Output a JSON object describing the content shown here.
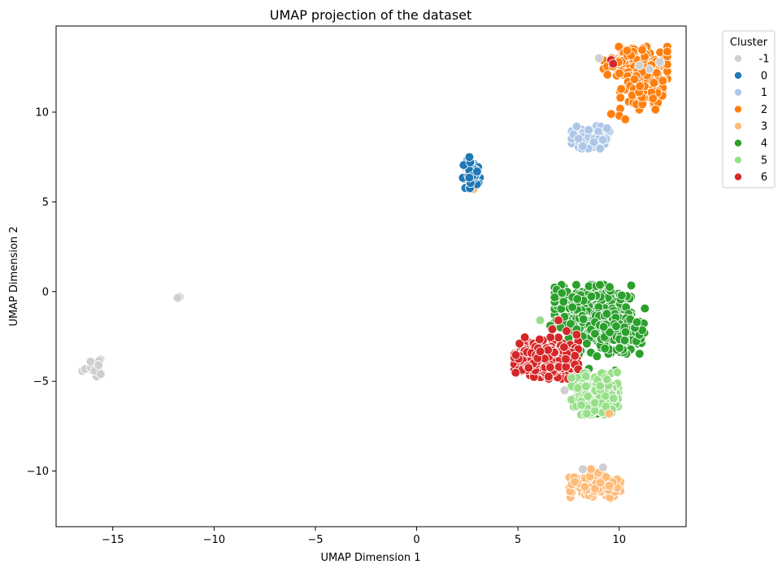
{
  "chart_data": {
    "type": "scatter",
    "title": "UMAP projection of the dataset",
    "xlabel": "UMAP Dimension 1",
    "ylabel": "UMAP Dimension 2",
    "xlim": [
      -17.8,
      13.3
    ],
    "ylim": [
      -13.1,
      14.8
    ],
    "xticks": [
      -15,
      -10,
      -5,
      0,
      5,
      10
    ],
    "xtick_labels": [
      "−15",
      "−10",
      "−5",
      "0",
      "5",
      "10"
    ],
    "yticks": [
      -10,
      -5,
      0,
      5,
      10
    ],
    "ytick_labels": [
      "−10",
      "−5",
      "0",
      "5",
      "10"
    ],
    "grid": false,
    "legend": {
      "title": "Cluster",
      "placement": "outside-top-right",
      "entries": [
        "-1",
        "0",
        "1",
        "2",
        "3",
        "4",
        "5",
        "6"
      ]
    },
    "cluster_colors": {
      "-1": "#cfcfcf",
      "0": "#1f77b4",
      "1": "#aec7e8",
      "2": "#ff7f0e",
      "3": "#ffbb78",
      "4": "#2ca02c",
      "5": "#98df8a",
      "6": "#d62728"
    },
    "series": [
      {
        "cluster": "4",
        "blobs": [
          {
            "center": [
              8.7,
              -1.2
            ],
            "spread": [
              0.9,
              0.75
            ],
            "count": 320
          },
          {
            "center": [
              9.9,
              -2.2
            ],
            "spread": [
              0.65,
              0.6
            ],
            "count": 180
          }
        ],
        "points": [
          [
            7.3,
            -1.4
          ],
          [
            7.6,
            -1.8
          ],
          [
            7.9,
            -2.1
          ],
          [
            8.2,
            -2.5
          ],
          [
            8.4,
            -2.9
          ],
          [
            8.1,
            -3.3
          ],
          [
            7.8,
            -3.0
          ],
          [
            7.1,
            -2.0
          ],
          [
            6.9,
            -1.6
          ],
          [
            8.6,
            -3.4
          ],
          [
            8.9,
            -3.6
          ],
          [
            7.5,
            -2.6
          ],
          [
            8.0,
            -3.5
          ],
          [
            6.6,
            -1.9
          ],
          [
            7.2,
            -2.9
          ],
          [
            8.9,
            -6.8
          ],
          [
            9.8,
            -4.4
          ],
          [
            8.5,
            -4.3
          ],
          [
            5.3,
            -3.6
          ]
        ]
      },
      {
        "cluster": "2",
        "blobs": [
          {
            "center": [
              10.8,
              12.7
            ],
            "spread": [
              0.75,
              0.45
            ],
            "count": 170
          },
          {
            "center": [
              11.1,
              11.2
            ],
            "spread": [
              0.5,
              0.5
            ],
            "count": 110
          }
        ],
        "points": [
          [
            10.0,
            9.8
          ],
          [
            10.3,
            9.6
          ],
          [
            9.6,
            9.9
          ]
        ]
      },
      {
        "cluster": "6",
        "blobs": [
          {
            "center": [
              6.4,
              -3.7
            ],
            "spread": [
              0.75,
              0.55
            ],
            "count": 300
          }
        ],
        "points": [
          [
            9.6,
            12.9
          ],
          [
            9.7,
            12.7
          ],
          [
            7.0,
            -1.6
          ],
          [
            7.4,
            -2.2
          ],
          [
            6.7,
            -2.1
          ],
          [
            7.9,
            -2.4
          ],
          [
            7.7,
            -6.0
          ]
        ]
      },
      {
        "cluster": "5",
        "blobs": [
          {
            "center": [
              8.8,
              -5.7
            ],
            "spread": [
              0.55,
              0.55
            ],
            "count": 240
          }
        ],
        "points": [
          [
            6.1,
            -1.6
          ],
          [
            8.4,
            -6.8
          ],
          [
            9.4,
            -4.9
          ],
          [
            9.9,
            -4.5
          ]
        ]
      },
      {
        "cluster": "3",
        "blobs": [
          {
            "center": [
              8.8,
              -10.8
            ],
            "spread": [
              0.6,
              0.35
            ],
            "count": 170
          }
        ],
        "points": [
          [
            8.6,
            -9.9
          ],
          [
            9.5,
            -6.8
          ],
          [
            8.5,
            8.6
          ],
          [
            2.8,
            5.7
          ]
        ]
      },
      {
        "cluster": "1",
        "blobs": [
          {
            "center": [
              8.6,
              8.6
            ],
            "spread": [
              0.45,
              0.3
            ],
            "count": 110
          }
        ],
        "points": [
          [
            7.9,
            9.2
          ],
          [
            9.4,
            9.1
          ],
          [
            8.2,
            8.1
          ]
        ]
      },
      {
        "cluster": "0",
        "blobs": [
          {
            "center": [
              2.7,
              6.6
            ],
            "spread": [
              0.2,
              0.4
            ],
            "count": 70
          }
        ],
        "points": [
          [
            -15.9,
            -4.4
          ],
          [
            2.6,
            7.5
          ]
        ]
      },
      {
        "cluster": "-1",
        "blobs": [
          {
            "center": [
              -16.0,
              -4.3
            ],
            "spread": [
              0.25,
              0.25
            ],
            "count": 20
          }
        ],
        "points": [
          [
            -11.7,
            -0.3
          ],
          [
            -11.8,
            -0.35
          ],
          [
            -15.6,
            -4.6
          ],
          [
            -16.1,
            -3.9
          ],
          [
            -15.7,
            -4.1
          ],
          [
            7.3,
            -5.5
          ],
          [
            12.0,
            12.8
          ],
          [
            9.0,
            13.0
          ],
          [
            11.5,
            12.4
          ],
          [
            11.0,
            12.6
          ],
          [
            8.2,
            -9.9
          ],
          [
            9.2,
            -9.8
          ]
        ]
      }
    ]
  }
}
